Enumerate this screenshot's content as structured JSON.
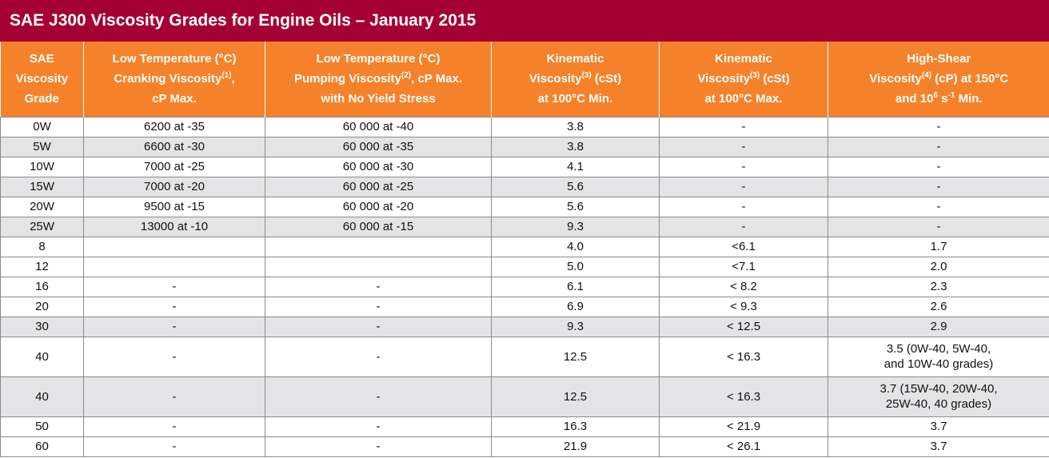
{
  "title": "SAE J300 Viscosity Grades for Engine Oils – January 2015",
  "headers": [
    {
      "lines": [
        "SAE",
        "Viscosity",
        "Grade"
      ]
    },
    {
      "lines": [
        "Low Temperature (°C)",
        "Cranking  Viscosity",
        "cP Max."
      ],
      "sup": "(1)",
      "sup_suffix": ","
    },
    {
      "lines": [
        "Low Temperature (°C)",
        "Pumping Viscosity",
        "with No Yield Stress"
      ],
      "sup": "(2)",
      "sup_suffix": ", cP Max."
    },
    {
      "lines": [
        "Kinematic",
        "Viscosity",
        "at 100°C Min."
      ],
      "sup": "(3)",
      "sup_suffix": " (cSt)"
    },
    {
      "lines": [
        "Kinematic",
        "Viscosity",
        "at 100°C Max."
      ],
      "sup": "(3)",
      "sup_suffix": " (cSt)"
    },
    {
      "lines": [
        "High-Shear",
        "Viscosity",
        "and 10",
        "s",
        " Min."
      ],
      "sup": "(4)",
      "sup_suffix": " (cP) at 150°C",
      "sup2": "6",
      "sup3": "-1"
    }
  ],
  "rows": [
    {
      "grade": "0W",
      "cranking": "6200 at -35",
      "pumping": "60 000 at -40",
      "kin_min": "3.8",
      "kin_max": "-",
      "hths": [
        "-"
      ],
      "shade": false
    },
    {
      "grade": "5W",
      "cranking": "6600 at -30",
      "pumping": "60 000 at -35",
      "kin_min": "3.8",
      "kin_max": "-",
      "hths": [
        "-"
      ],
      "shade": true
    },
    {
      "grade": "10W",
      "cranking": "7000 at -25",
      "pumping": "60 000 at -30",
      "kin_min": "4.1",
      "kin_max": "-",
      "hths": [
        "-"
      ],
      "shade": false
    },
    {
      "grade": "15W",
      "cranking": "7000 at -20",
      "pumping": "60 000 at -25",
      "kin_min": "5.6",
      "kin_max": "-",
      "hths": [
        "-"
      ],
      "shade": true
    },
    {
      "grade": "20W",
      "cranking": "9500 at -15",
      "pumping": "60 000 at -20",
      "kin_min": "5.6",
      "kin_max": "-",
      "hths": [
        "-"
      ],
      "shade": false
    },
    {
      "grade": "25W",
      "cranking": "13000 at -10",
      "pumping": "60 000 at -15",
      "kin_min": "9.3",
      "kin_max": "-",
      "hths": [
        "-"
      ],
      "shade": true
    },
    {
      "grade": "8",
      "cranking": "",
      "pumping": "",
      "kin_min": "4.0",
      "kin_max": "<6.1",
      "hths": [
        "1.7"
      ],
      "shade": false
    },
    {
      "grade": "12",
      "cranking": "",
      "pumping": "",
      "kin_min": "5.0",
      "kin_max": "<7.1",
      "hths": [
        "2.0"
      ],
      "shade": false
    },
    {
      "grade": "16",
      "cranking": "-",
      "pumping": "-",
      "kin_min": "6.1",
      "kin_max": "< 8.2",
      "hths": [
        "2.3"
      ],
      "shade": false
    },
    {
      "grade": "20",
      "cranking": "-",
      "pumping": "-",
      "kin_min": "6.9",
      "kin_max": "< 9.3",
      "hths": [
        "2.6"
      ],
      "shade": false
    },
    {
      "grade": "30",
      "cranking": "-",
      "pumping": "-",
      "kin_min": "9.3",
      "kin_max": "< 12.5",
      "hths": [
        "2.9"
      ],
      "shade": true
    },
    {
      "grade": "40",
      "cranking": "-",
      "pumping": "-",
      "kin_min": "12.5",
      "kin_max": "< 16.3",
      "hths": [
        "3.5 (0W-40, 5W-40,",
        "and 10W-40 grades)"
      ],
      "shade": false
    },
    {
      "grade": "40",
      "cranking": "-",
      "pumping": "-",
      "kin_min": "12.5",
      "kin_max": "< 16.3",
      "hths": [
        "3.7 (15W-40, 20W-40,",
        "25W-40, 40 grades)"
      ],
      "shade": true
    },
    {
      "grade": "50",
      "cranking": "-",
      "pumping": "-",
      "kin_min": "16.3",
      "kin_max": "< 21.9",
      "hths": [
        "3.7"
      ],
      "shade": false
    },
    {
      "grade": "60",
      "cranking": "-",
      "pumping": "-",
      "kin_min": "21.9",
      "kin_max": "< 26.1",
      "hths": [
        "3.7"
      ],
      "shade": false
    }
  ],
  "colors": {
    "title_bg": "#a50034",
    "header_bg": "#f5822a",
    "shade_bg": "#e4e4e6"
  }
}
